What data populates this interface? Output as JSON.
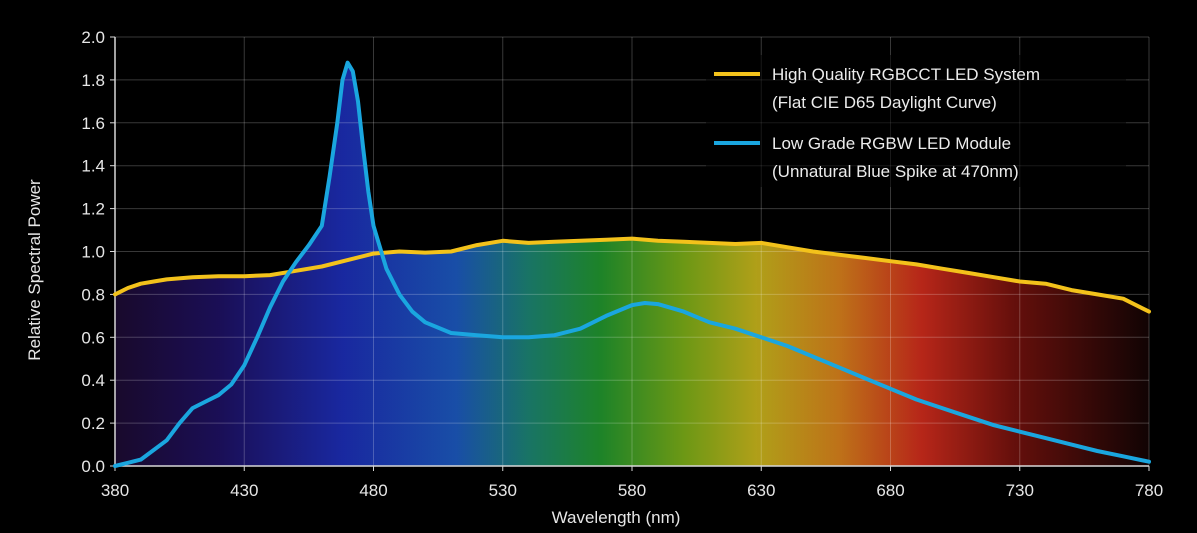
{
  "chart_data": {
    "type": "line",
    "xlabel": "Wavelength (nm)",
    "ylabel": "Relative Spectral Power",
    "xlim": [
      380,
      780
    ],
    "ylim": [
      0,
      2.0
    ],
    "x_ticks": [
      "380",
      "430",
      "480",
      "530",
      "580",
      "630",
      "680",
      "730",
      "780"
    ],
    "y_ticks": [
      "0.0",
      "0.2",
      "0.4",
      "0.6",
      "0.8",
      "1.0",
      "1.2",
      "1.4",
      "1.6",
      "1.8",
      "2.0"
    ],
    "grid": true,
    "legend_position": "top-right",
    "background": "visible spectrum gradient",
    "series": [
      {
        "name": "High Quality RGBCCT LED System",
        "subtitle": "(Flat CIE D65 Daylight Curve)",
        "color": "#f3c21b",
        "x": [
          380,
          385,
          390,
          395,
          400,
          410,
          420,
          430,
          440,
          450,
          460,
          470,
          480,
          490,
          500,
          510,
          520,
          530,
          540,
          550,
          560,
          570,
          580,
          590,
          600,
          610,
          620,
          630,
          640,
          650,
          660,
          670,
          680,
          690,
          700,
          710,
          720,
          730,
          740,
          750,
          760,
          770,
          780
        ],
        "y": [
          0.8,
          0.83,
          0.85,
          0.86,
          0.87,
          0.88,
          0.885,
          0.885,
          0.89,
          0.91,
          0.93,
          0.96,
          0.99,
          1.0,
          0.995,
          1.0,
          1.03,
          1.05,
          1.04,
          1.045,
          1.05,
          1.055,
          1.06,
          1.05,
          1.045,
          1.04,
          1.035,
          1.04,
          1.02,
          1.0,
          0.985,
          0.97,
          0.955,
          0.94,
          0.92,
          0.9,
          0.88,
          0.86,
          0.85,
          0.82,
          0.8,
          0.78,
          0.72
        ]
      },
      {
        "name": "Low Grade RGBW LED Module",
        "subtitle": "(Unnatural Blue Spike at 470nm)",
        "color": "#1aa6df",
        "x": [
          380,
          390,
          400,
          405,
          410,
          415,
          420,
          425,
          430,
          435,
          440,
          445,
          450,
          455,
          460,
          463,
          466,
          468,
          470,
          472,
          474,
          476,
          478,
          480,
          485,
          490,
          495,
          500,
          510,
          520,
          530,
          540,
          550,
          560,
          570,
          580,
          585,
          590,
          600,
          610,
          620,
          630,
          640,
          650,
          660,
          670,
          680,
          690,
          700,
          710,
          720,
          730,
          740,
          750,
          760,
          770,
          780
        ],
        "y": [
          0.0,
          0.03,
          0.12,
          0.2,
          0.27,
          0.3,
          0.33,
          0.38,
          0.47,
          0.6,
          0.74,
          0.86,
          0.95,
          1.03,
          1.12,
          1.35,
          1.6,
          1.8,
          1.88,
          1.84,
          1.7,
          1.48,
          1.28,
          1.12,
          0.92,
          0.8,
          0.72,
          0.67,
          0.62,
          0.61,
          0.6,
          0.6,
          0.61,
          0.64,
          0.7,
          0.75,
          0.76,
          0.755,
          0.72,
          0.67,
          0.64,
          0.6,
          0.56,
          0.51,
          0.46,
          0.41,
          0.36,
          0.31,
          0.27,
          0.23,
          0.19,
          0.16,
          0.13,
          0.1,
          0.07,
          0.045,
          0.02
        ]
      }
    ]
  }
}
